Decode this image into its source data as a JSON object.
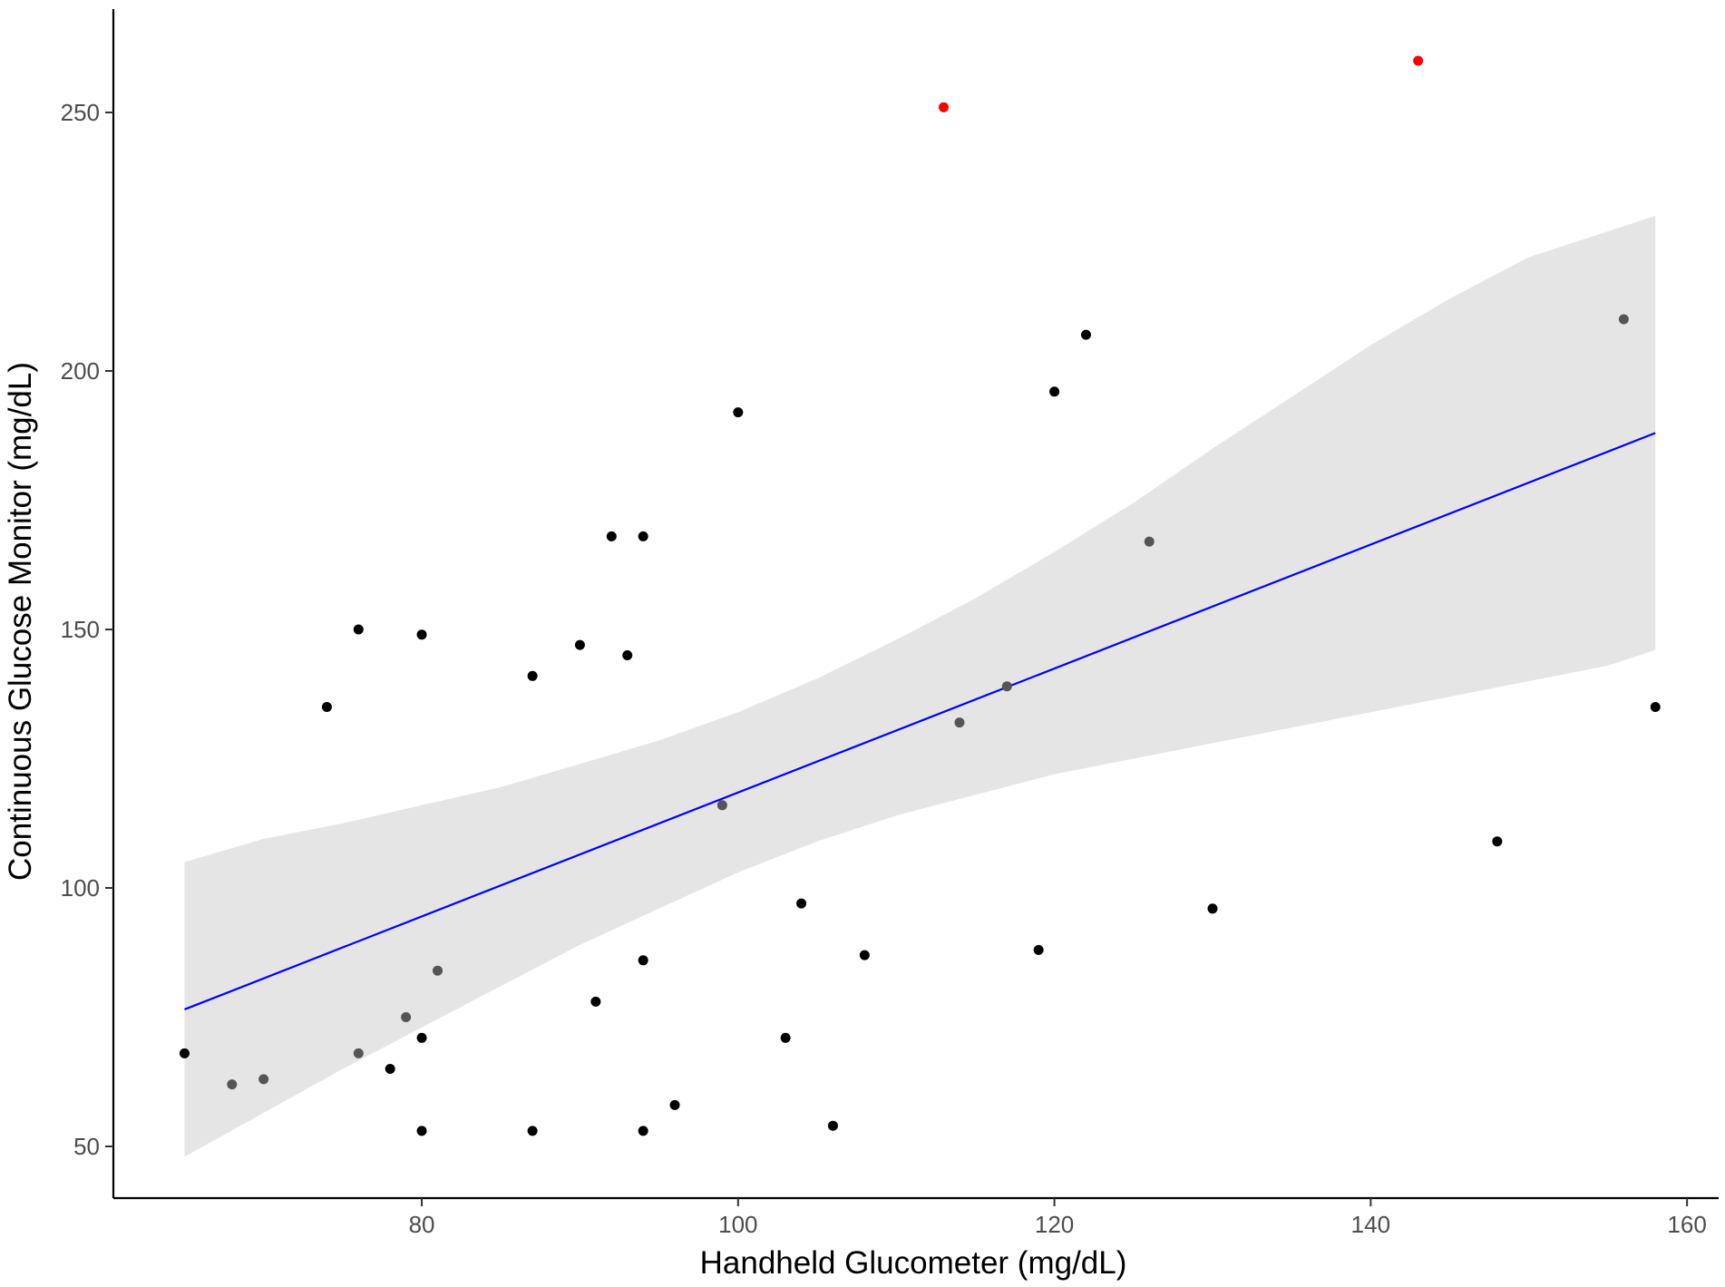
{
  "chart_data": {
    "type": "scatter",
    "title": "",
    "xlabel": "Handheld Glucometer (mg/dL)",
    "ylabel": "Continuous Glucose Monitor (mg/dL)",
    "xlim": [
      60.5,
      162
    ],
    "ylim": [
      40,
      270
    ],
    "xticks": [
      80,
      100,
      120,
      140,
      160
    ],
    "yticks": [
      50,
      100,
      150,
      200,
      250
    ],
    "grid": false,
    "legend": "none",
    "colors": {
      "point": "#000000",
      "point_grey": "#555555",
      "outlier": "#ff0000",
      "fit_line": "#0000ff",
      "band": "#e5e5e5",
      "axis": "#000000"
    },
    "points": [
      {
        "x": 65,
        "y": 68,
        "group": "normal"
      },
      {
        "x": 68,
        "y": 62,
        "group": "band"
      },
      {
        "x": 70,
        "y": 63,
        "group": "band"
      },
      {
        "x": 74,
        "y": 135,
        "group": "normal"
      },
      {
        "x": 76,
        "y": 150,
        "group": "normal"
      },
      {
        "x": 76,
        "y": 68,
        "group": "band"
      },
      {
        "x": 78,
        "y": 65,
        "group": "normal"
      },
      {
        "x": 79,
        "y": 75,
        "group": "band"
      },
      {
        "x": 80,
        "y": 149,
        "group": "normal"
      },
      {
        "x": 80,
        "y": 71,
        "group": "normal"
      },
      {
        "x": 80,
        "y": 53,
        "group": "normal"
      },
      {
        "x": 81,
        "y": 84,
        "group": "band"
      },
      {
        "x": 87,
        "y": 141,
        "group": "normal"
      },
      {
        "x": 87,
        "y": 53,
        "group": "normal"
      },
      {
        "x": 90,
        "y": 147,
        "group": "normal"
      },
      {
        "x": 91,
        "y": 78,
        "group": "normal"
      },
      {
        "x": 92,
        "y": 168,
        "group": "normal"
      },
      {
        "x": 93,
        "y": 145,
        "group": "normal"
      },
      {
        "x": 94,
        "y": 168,
        "group": "normal"
      },
      {
        "x": 94,
        "y": 86,
        "group": "normal"
      },
      {
        "x": 94,
        "y": 53,
        "group": "normal"
      },
      {
        "x": 96,
        "y": 58,
        "group": "normal"
      },
      {
        "x": 99,
        "y": 116,
        "group": "band"
      },
      {
        "x": 100,
        "y": 192,
        "group": "normal"
      },
      {
        "x": 103,
        "y": 71,
        "group": "normal"
      },
      {
        "x": 104,
        "y": 97,
        "group": "normal"
      },
      {
        "x": 106,
        "y": 54,
        "group": "normal"
      },
      {
        "x": 108,
        "y": 87,
        "group": "normal"
      },
      {
        "x": 113,
        "y": 251,
        "group": "outlier"
      },
      {
        "x": 114,
        "y": 132,
        "group": "band"
      },
      {
        "x": 117,
        "y": 139,
        "group": "band"
      },
      {
        "x": 119,
        "y": 88,
        "group": "normal"
      },
      {
        "x": 120,
        "y": 196,
        "group": "normal"
      },
      {
        "x": 122,
        "y": 207,
        "group": "normal"
      },
      {
        "x": 126,
        "y": 167,
        "group": "band"
      },
      {
        "x": 130,
        "y": 96,
        "group": "normal"
      },
      {
        "x": 143,
        "y": 260,
        "group": "outlier"
      },
      {
        "x": 148,
        "y": 109,
        "group": "normal"
      },
      {
        "x": 156,
        "y": 210,
        "group": "band"
      },
      {
        "x": 158,
        "y": 135,
        "group": "normal"
      }
    ],
    "fit_line": {
      "x": [
        65,
        158
      ],
      "y": [
        76.5,
        188
      ]
    },
    "confidence_band": {
      "x": [
        65,
        70,
        75,
        80,
        85,
        90,
        95,
        100,
        105,
        110,
        115,
        120,
        125,
        130,
        135,
        140,
        145,
        150,
        155,
        158
      ],
      "lower": [
        48,
        56.5,
        65,
        73,
        81,
        89,
        96,
        103,
        109,
        114,
        118,
        122,
        125,
        128,
        131,
        134,
        137,
        140,
        143,
        146
      ],
      "upper": [
        105,
        109.5,
        112.5,
        116,
        119.5,
        124,
        128.5,
        134,
        140.5,
        148,
        156,
        165,
        174.5,
        185,
        195,
        205,
        214,
        222,
        227,
        230
      ]
    }
  }
}
